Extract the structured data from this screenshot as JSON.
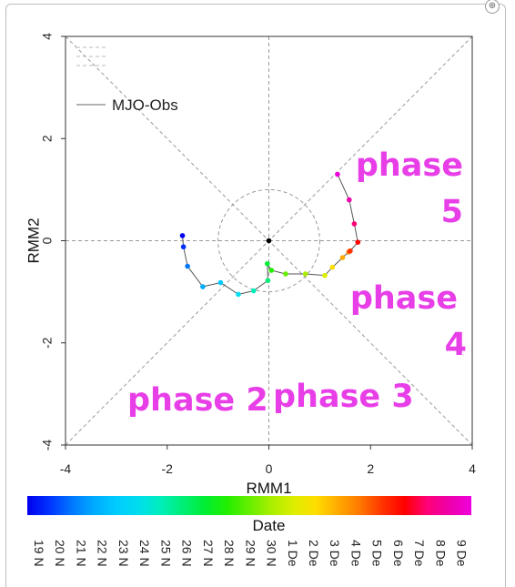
{
  "chart_data": {
    "type": "scatter",
    "xlabel": "RMM1",
    "ylabel": "RMM2",
    "xlim": [
      -4,
      4
    ],
    "ylim": [
      -4,
      4
    ],
    "xticks": [
      "-4",
      "-2",
      "0",
      "2",
      "4"
    ],
    "yticks": [
      "-4",
      "-2",
      "0",
      "2",
      "4"
    ],
    "legend_label": "MJO-Obs",
    "legend_placement": "top-left",
    "phase_labels": [
      {
        "id": "phase-5",
        "lines": [
          "phase",
          "5"
        ]
      },
      {
        "id": "phase-4",
        "lines": [
          "phase",
          "4"
        ]
      },
      {
        "id": "phase-2",
        "lines": [
          "phase 2"
        ]
      },
      {
        "id": "phase-3",
        "lines": [
          "phase 3"
        ]
      }
    ],
    "colorbar_title": "Date",
    "dates": [
      "19 N",
      "20 N",
      "21 N",
      "22 N",
      "23 N",
      "24 N",
      "25 N",
      "26 N",
      "27 N",
      "28 N",
      "29 N",
      "30 N",
      "1 De",
      "2 De",
      "3 De",
      "4 De",
      "5 De",
      "6 De",
      "7 De",
      "8 De",
      "9 De"
    ],
    "colors": [
      "#0000ee",
      "#0033ff",
      "#0077ff",
      "#00aaff",
      "#00ccff",
      "#00ddee",
      "#00eebb",
      "#00ee77",
      "#00ee33",
      "#22ee00",
      "#66ee00",
      "#aaee00",
      "#ddee00",
      "#ffdd00",
      "#ffaa00",
      "#ff7700",
      "#ff3300",
      "#ff0000",
      "#ff0077",
      "#ee00aa",
      "#ee00dd"
    ],
    "series": [
      {
        "name": "MJO-Obs",
        "x": [
          -1.7,
          -1.68,
          -1.6,
          -1.3,
          -0.95,
          -0.6,
          -0.3,
          -0.02,
          -0.03,
          0.05,
          0.33,
          0.72,
          1.1,
          1.25,
          1.45,
          1.57,
          1.6,
          1.75,
          1.68,
          1.58,
          1.35
        ],
        "y": [
          0.1,
          -0.12,
          -0.5,
          -0.9,
          -0.82,
          -1.05,
          -0.98,
          -0.78,
          -0.45,
          -0.58,
          -0.65,
          -0.65,
          -0.68,
          -0.52,
          -0.33,
          -0.22,
          -0.2,
          -0.03,
          0.33,
          0.8,
          1.3
        ]
      }
    ]
  }
}
